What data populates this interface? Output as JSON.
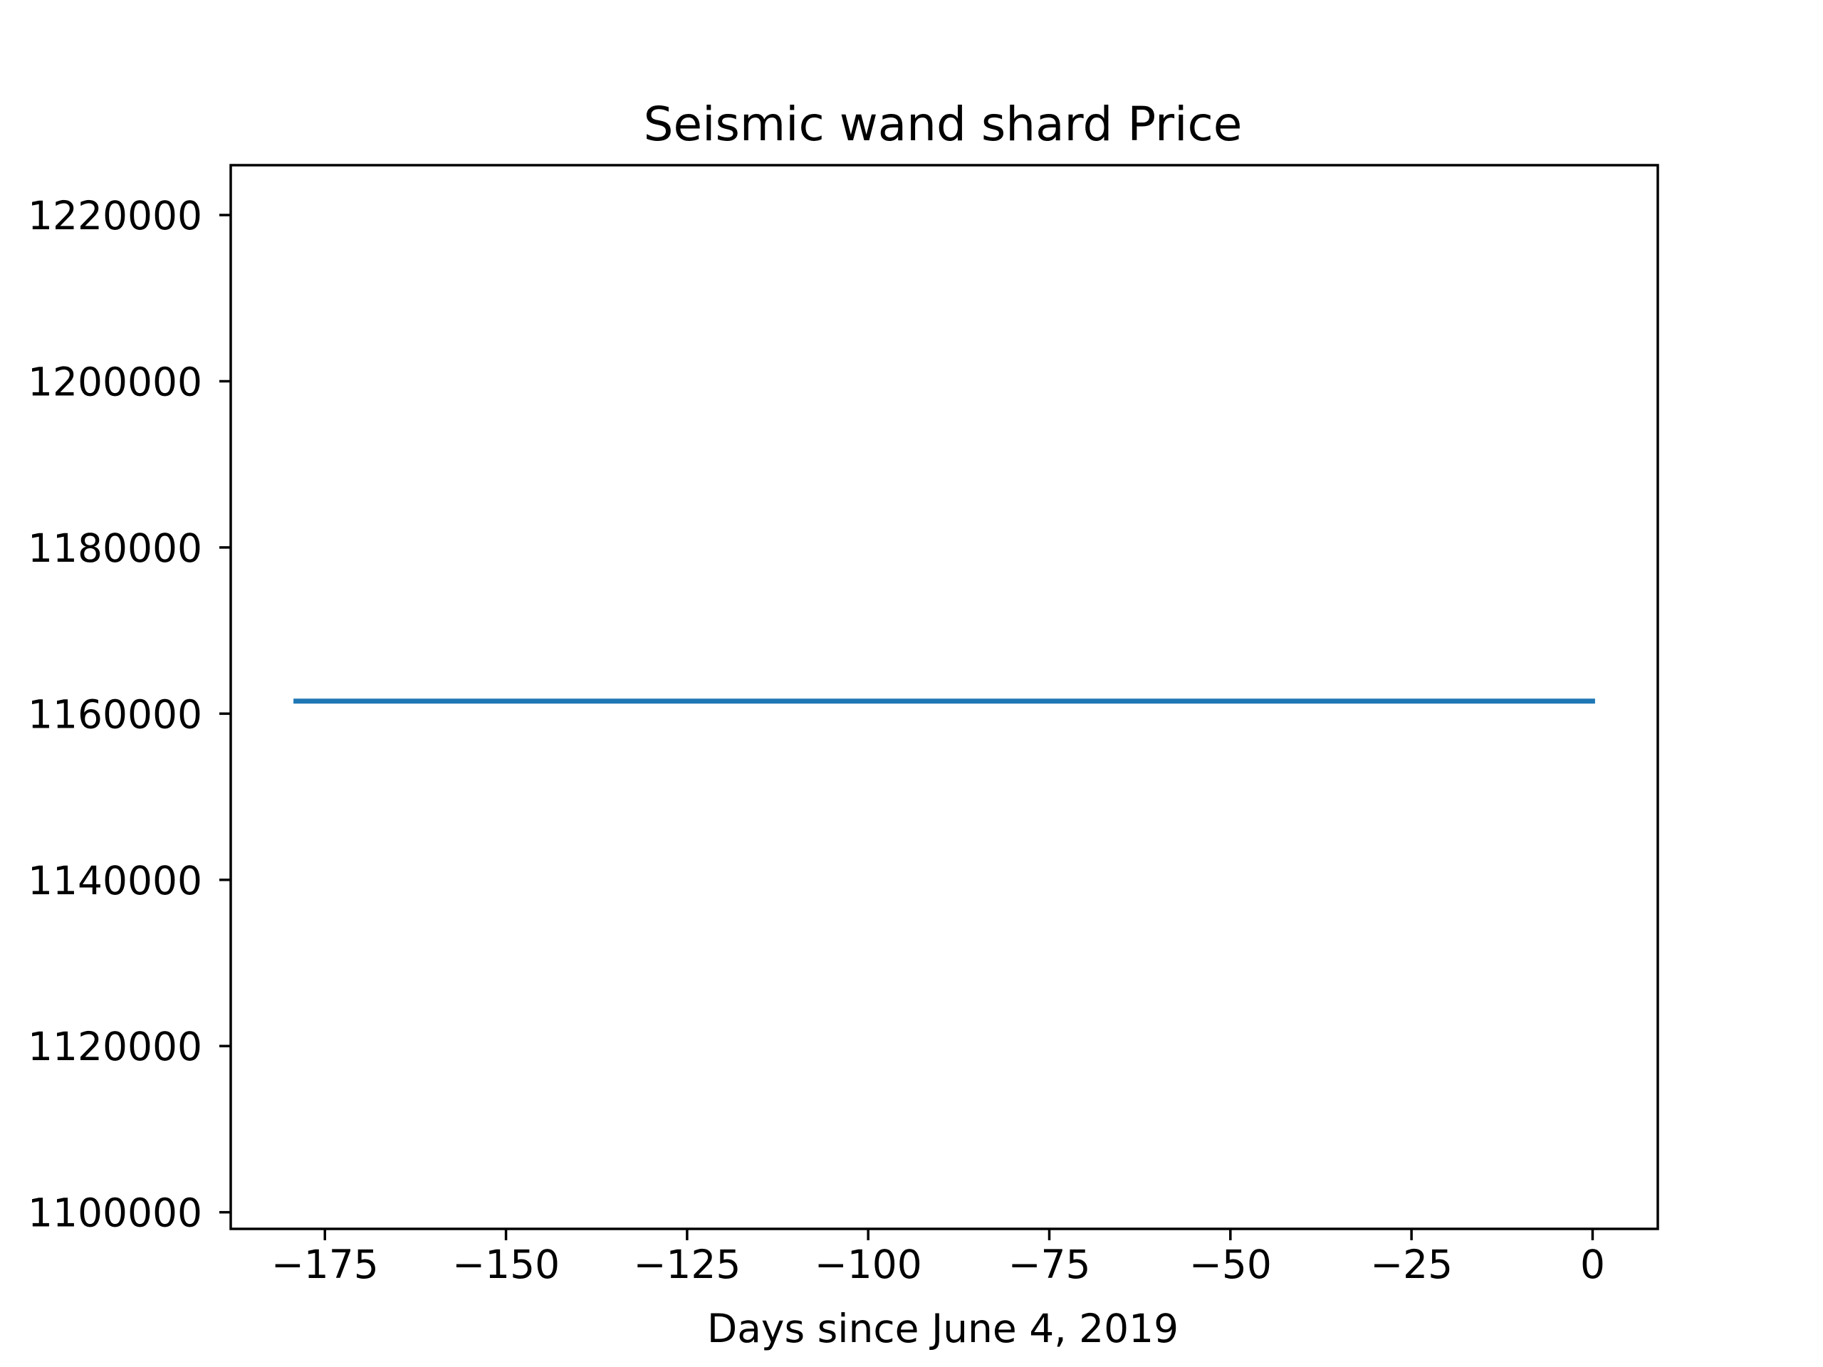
{
  "chart_data": {
    "type": "line",
    "title": "Seismic wand shard Price",
    "xlabel": "Days since June 4, 2019",
    "ylabel": "",
    "xlim": [
      -188,
      9
    ],
    "ylim": [
      1098000,
      1226000
    ],
    "x_ticks": [
      -175,
      -150,
      -125,
      -100,
      -75,
      -50,
      -25,
      0
    ],
    "x_tick_labels": [
      "−175",
      "−150",
      "−125",
      "−100",
      "−75",
      "−50",
      "−25",
      "0"
    ],
    "y_ticks": [
      1100000,
      1120000,
      1140000,
      1160000,
      1180000,
      1200000,
      1220000
    ],
    "y_tick_labels": [
      "1100000",
      "1120000",
      "1140000",
      "1160000",
      "1180000",
      "1200000",
      "1220000"
    ],
    "grid": false,
    "series": [
      {
        "color": "#1f77b4",
        "x": [
          -179,
          0
        ],
        "y": [
          1161500,
          1161500
        ]
      }
    ]
  }
}
